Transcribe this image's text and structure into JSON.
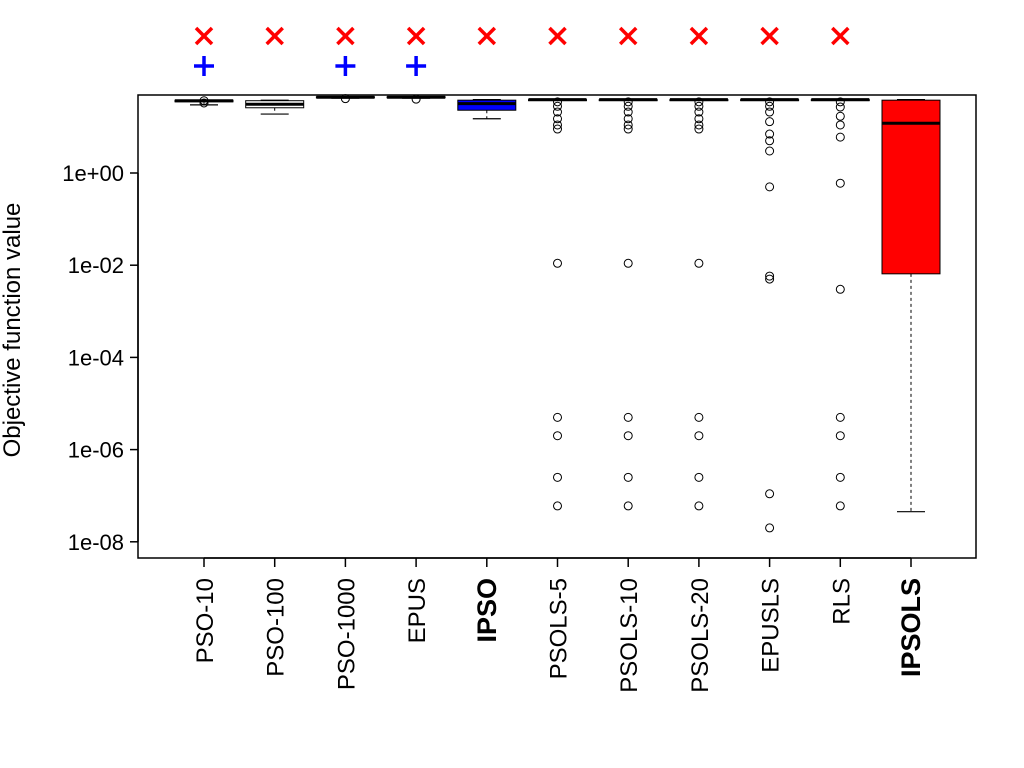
{
  "chart_data": {
    "type": "boxplot",
    "ylabel": "Objective function value",
    "yscale": "log10",
    "ylim": [
      3e-09,
      300
    ],
    "yticks": [
      {
        "value": 1,
        "label": "1e+00"
      },
      {
        "value": 0.01,
        "label": "1e-02"
      },
      {
        "value": 0.0001,
        "label": "1e-04"
      },
      {
        "value": 1e-06,
        "label": "1e-06"
      },
      {
        "value": 1e-08,
        "label": "1e-08"
      }
    ],
    "categories": [
      "PSO-10",
      "PSO-100",
      "PSO-1000",
      "EPUS",
      "IPSO",
      "PSOLS-5",
      "PSOLS-10",
      "PSOLS-20",
      "EPUSLS",
      "RLS",
      "IPSOLS"
    ],
    "bold_categories": [
      "IPSO",
      "IPSOLS"
    ],
    "markers": {
      "cross_color": "#ff0000",
      "plus_color": "#0000ff",
      "cross_categories": [
        "PSO-10",
        "PSO-100",
        "PSO-1000",
        "EPUS",
        "IPSO",
        "PSOLS-5",
        "PSOLS-10",
        "PSOLS-20",
        "EPUSLS",
        "RLS"
      ],
      "plus_categories": [
        "PSO-10",
        "PSO-1000",
        "EPUS"
      ]
    },
    "boxes": [
      {
        "name": "PSO-10",
        "fill": "#ffffff",
        "whisker_low": 30,
        "q1": 35,
        "median": 37,
        "q3": 38,
        "whisker_high": 38,
        "outliers": [
          33,
          37
        ]
      },
      {
        "name": "PSO-100",
        "fill": "#ffffff",
        "whisker_low": 19,
        "q1": 26,
        "median": 31,
        "q3": 37,
        "whisker_high": 38,
        "outliers": []
      },
      {
        "name": "PSO-1000",
        "fill": "#ffffff",
        "whisker_low": 42,
        "q1": 43,
        "median": 44,
        "q3": 45,
        "whisker_high": 45,
        "outliers": [
          41
        ]
      },
      {
        "name": "EPUS",
        "fill": "#ffffff",
        "whisker_low": 42,
        "q1": 43,
        "median": 44,
        "q3": 45,
        "whisker_high": 45,
        "outliers": [
          40
        ]
      },
      {
        "name": "IPSO",
        "fill": "#0000ff",
        "whisker_low": 15,
        "q1": 23,
        "median": 32,
        "q3": 38,
        "whisker_high": 39,
        "outliers": []
      },
      {
        "name": "PSOLS-5",
        "fill": "#ffffff",
        "whisker_low": 38,
        "q1": 38,
        "median": 39,
        "q3": 39,
        "whisker_high": 39,
        "outliers": [
          35,
          28,
          21,
          15,
          11,
          9,
          0.011,
          5e-06,
          2e-06,
          2.5e-07,
          6e-08
        ]
      },
      {
        "name": "PSOLS-10",
        "fill": "#ffffff",
        "whisker_low": 38,
        "q1": 38,
        "median": 39,
        "q3": 39,
        "whisker_high": 39,
        "outliers": [
          35,
          28,
          21,
          15,
          11,
          9,
          0.011,
          5e-06,
          2e-06,
          2.5e-07,
          6e-08
        ]
      },
      {
        "name": "PSOLS-20",
        "fill": "#ffffff",
        "whisker_low": 38,
        "q1": 38,
        "median": 39,
        "q3": 39,
        "whisker_high": 39,
        "outliers": [
          35,
          28,
          21,
          15,
          11,
          9,
          0.011,
          5e-06,
          2e-06,
          2.5e-07,
          6e-08
        ]
      },
      {
        "name": "EPUSLS",
        "fill": "#ffffff",
        "whisker_low": 38,
        "q1": 38,
        "median": 39,
        "q3": 39,
        "whisker_high": 39,
        "outliers": [
          35,
          28,
          21,
          13,
          7,
          5,
          3,
          0.5,
          0.0058,
          0.005,
          1.1e-07,
          2e-08
        ]
      },
      {
        "name": "RLS",
        "fill": "#ffffff",
        "whisker_low": 38,
        "q1": 38,
        "median": 39,
        "q3": 39,
        "whisker_high": 39,
        "outliers": [
          35,
          27,
          17,
          11,
          6,
          0.6,
          0.003,
          5e-06,
          2e-06,
          2.5e-07,
          6e-08
        ]
      },
      {
        "name": "IPSOLS",
        "fill": "#ff0000",
        "whisker_low": 4.5e-08,
        "q1": 0.0065,
        "median": 12,
        "q3": 38,
        "whisker_high": 39,
        "outliers": []
      }
    ]
  }
}
